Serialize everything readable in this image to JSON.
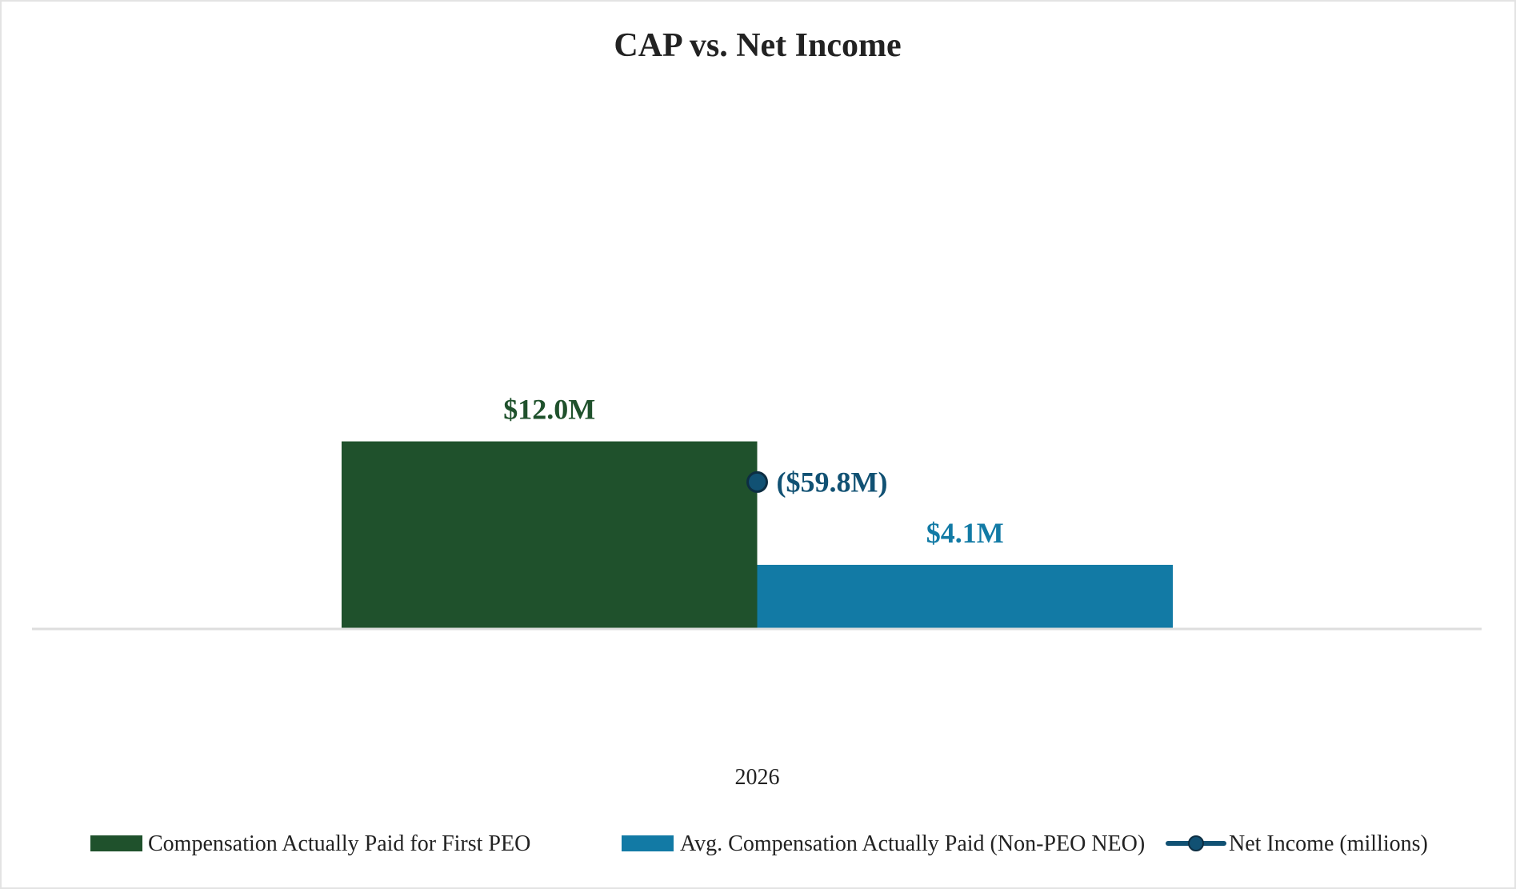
{
  "chart_data": {
    "type": "bar",
    "title": "CAP vs. Net Income",
    "categories": [
      "2026"
    ],
    "series": [
      {
        "name": "Compensation Actually Paid for First PEO",
        "type": "bar",
        "values": [
          12.0
        ],
        "labels": [
          "$12.0M"
        ],
        "color": "#1f512c"
      },
      {
        "name": "Avg. Compensation Actually Paid (Non-PEO NEO)",
        "type": "bar",
        "values": [
          4.1
        ],
        "labels": [
          "$4.1M"
        ],
        "color": "#127aa5"
      },
      {
        "name": "Net Income (millions)",
        "type": "line",
        "values": [
          -59.8
        ],
        "labels": [
          "($59.8M)"
        ],
        "color": "#115173"
      }
    ],
    "bar_ylim": [
      0,
      30
    ],
    "line_ylim": [
      -100,
      0
    ],
    "grid": false,
    "legend_position": "bottom"
  }
}
